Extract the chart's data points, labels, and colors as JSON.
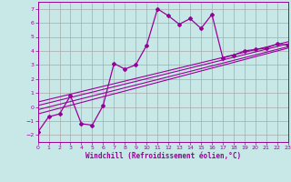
{
  "xlabel": "Windchill (Refroidissement éolien,°C)",
  "bg_color": "#c8e8e8",
  "grid_color": "#aaaaaa",
  "line_color": "#990099",
  "xlim": [
    0,
    23
  ],
  "ylim": [
    -2.5,
    7.5
  ],
  "xticks": [
    0,
    1,
    2,
    3,
    4,
    5,
    6,
    7,
    8,
    9,
    10,
    11,
    12,
    13,
    14,
    15,
    16,
    17,
    18,
    19,
    20,
    21,
    22,
    23
  ],
  "yticks": [
    -2,
    -1,
    0,
    1,
    2,
    3,
    4,
    5,
    6,
    7
  ],
  "main_series": [
    [
      0,
      -1.8
    ],
    [
      1,
      -0.7
    ],
    [
      2,
      -0.5
    ],
    [
      3,
      0.8
    ],
    [
      4,
      -1.2
    ],
    [
      5,
      -1.3
    ],
    [
      6,
      0.1
    ],
    [
      7,
      3.1
    ],
    [
      8,
      2.7
    ],
    [
      9,
      3.0
    ],
    [
      10,
      4.4
    ],
    [
      11,
      7.0
    ],
    [
      12,
      6.5
    ],
    [
      13,
      5.9
    ],
    [
      14,
      6.3
    ],
    [
      15,
      5.6
    ],
    [
      16,
      6.6
    ],
    [
      17,
      3.5
    ],
    [
      18,
      3.7
    ],
    [
      19,
      4.0
    ],
    [
      20,
      4.1
    ],
    [
      21,
      4.2
    ],
    [
      22,
      4.5
    ],
    [
      23,
      4.4
    ]
  ],
  "reg_lines": [
    {
      "x": [
        0,
        23
      ],
      "y": [
        -0.5,
        4.2
      ]
    },
    {
      "x": [
        0,
        23
      ],
      "y": [
        -0.2,
        4.3
      ]
    },
    {
      "x": [
        0,
        23
      ],
      "y": [
        0.1,
        4.5
      ]
    },
    {
      "x": [
        0,
        23
      ],
      "y": [
        0.35,
        4.65
      ]
    }
  ]
}
